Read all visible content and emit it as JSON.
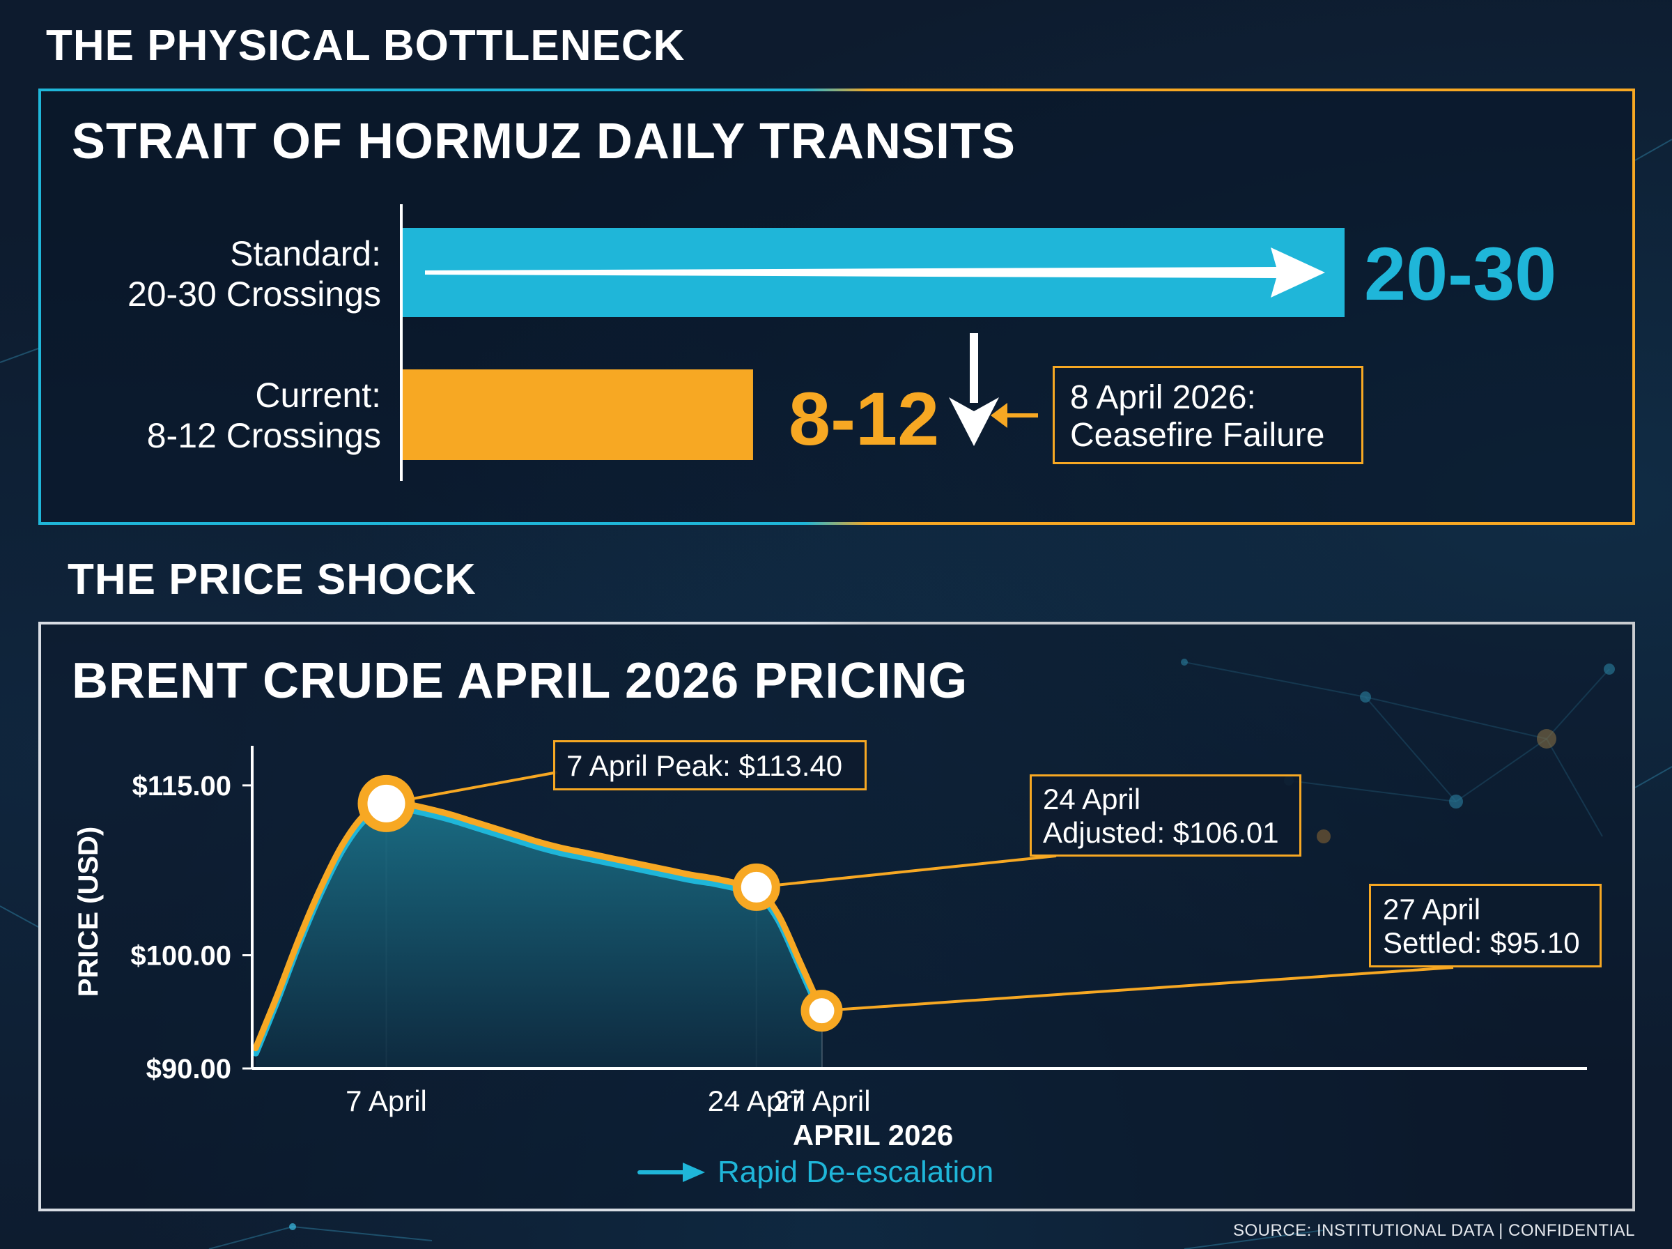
{
  "section_1": {
    "title": "THE PHYSICAL BOTTLENECK",
    "chart_title": "STRAIT OF HORMUZ DAILY TRANSITS"
  },
  "section_2": {
    "title": "THE PRICE SHOCK",
    "chart_title": "BRENT CRUDE APRIL 2026 PRICING"
  },
  "chart_data": [
    {
      "type": "bar",
      "orientation": "horizontal",
      "title": "STRAIT OF HORMUZ DAILY TRANSITS",
      "categories": [
        {
          "line1": "Standard:",
          "line2": "20-30 Crossings"
        },
        {
          "line1": "Current:",
          "line2": "8-12 Crossings"
        }
      ],
      "value_labels": [
        "20-30",
        "8-12"
      ],
      "ranges": [
        [
          20,
          30
        ],
        [
          8,
          12
        ]
      ],
      "values": [
        30,
        12
      ],
      "xlim": [
        0,
        30
      ],
      "colors": [
        "#1fb6d9",
        "#f7a823"
      ],
      "annotation": {
        "line1": "8 April 2026:",
        "line2": "Ceasefire Failure"
      }
    },
    {
      "type": "area",
      "title": "BRENT CRUDE APRIL 2026 PRICING",
      "xlabel": "APRIL 2026",
      "ylabel": "PRICE (USD)",
      "ylim": [
        90,
        118.5
      ],
      "y_ticks": [
        {
          "value": 90,
          "label": "$90.00"
        },
        {
          "value": 100,
          "label": "$100.00"
        },
        {
          "value": 115,
          "label": "$115.00"
        }
      ],
      "x_ticks": [
        "7 April",
        "24 April",
        "27 April"
      ],
      "series": [
        {
          "x": [
            1,
            2,
            3,
            4,
            5,
            6,
            7,
            8,
            9,
            10,
            11,
            12,
            13,
            14,
            15,
            16,
            17,
            18,
            19,
            20,
            21,
            22,
            23,
            24,
            25,
            26,
            27
          ],
          "values": [
            91.8,
            96.5,
            101.5,
            106.0,
            109.8,
            112.4,
            113.4,
            113.3,
            112.9,
            112.4,
            111.8,
            111.2,
            110.6,
            110.0,
            109.5,
            109.1,
            108.7,
            108.3,
            107.9,
            107.5,
            107.1,
            106.8,
            106.4,
            106.01,
            103.6,
            99.4,
            95.1
          ]
        }
      ],
      "key_points": [
        {
          "day": 7,
          "value": 113.4,
          "line1": "7 April Peak: $113.40",
          "line2": ""
        },
        {
          "day": 24,
          "value": 106.01,
          "line1": "24 April",
          "line2": "Adjusted: $106.01"
        },
        {
          "day": 27,
          "value": 95.1,
          "line1": "27 April",
          "line2": "Settled: $95.10"
        }
      ],
      "legend": "Rapid De-escalation",
      "colors": {
        "line": "#f7a823",
        "line_inner": "#1fb6d9",
        "fill": "#1a6478"
      }
    }
  ],
  "footer": {
    "source": "SOURCE: INSTITUTIONAL DATA | CONFIDENTIAL"
  }
}
